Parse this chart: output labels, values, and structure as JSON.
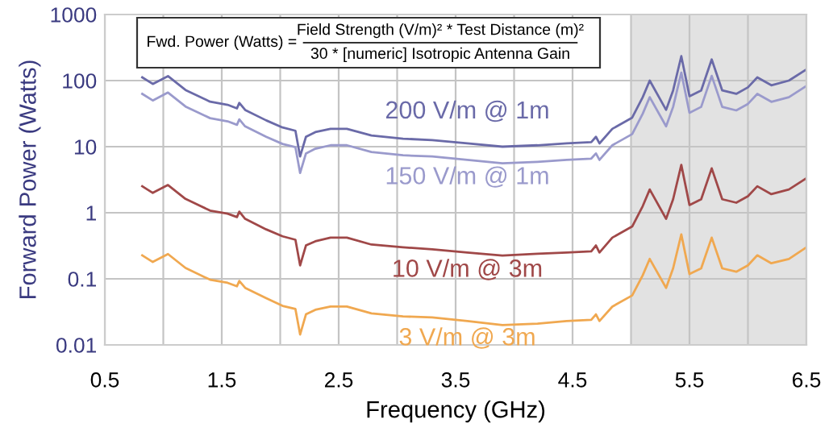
{
  "chart_data": {
    "type": "line",
    "xlabel": "Frequency (GHz)",
    "ylabel": "Forward Power (Watts)",
    "x": [
      0.82,
      0.91,
      1.04,
      1.19,
      1.4,
      1.55,
      1.63,
      1.65,
      1.7,
      1.88,
      2.02,
      2.13,
      2.17,
      2.22,
      2.3,
      2.43,
      2.57,
      2.78,
      3.05,
      3.3,
      3.6,
      3.9,
      4.2,
      4.45,
      4.66,
      4.7,
      4.73,
      4.84,
      5.01,
      5.1,
      5.16,
      5.3,
      5.36,
      5.43,
      5.5,
      5.6,
      5.69,
      5.78,
      5.9,
      6.0,
      6.08,
      6.2,
      6.35,
      6.5
    ],
    "series": [
      {
        "name": "200 V/m @ 1m",
        "color": "#6a6aa8",
        "values": [
          112,
          89,
          117,
          72,
          48,
          43,
          38,
          46,
          36,
          25,
          19.5,
          17.4,
          7.1,
          14.1,
          16.6,
          18.6,
          18.6,
          14.8,
          13.2,
          12.6,
          11.2,
          10,
          10.5,
          11.2,
          11.7,
          14.1,
          11.2,
          18.6,
          27.5,
          56,
          100,
          36,
          71,
          234,
          58,
          71,
          209,
          71,
          63,
          79,
          112,
          85,
          100,
          148
        ]
      },
      {
        "name": "150 V/m @ 1m",
        "color": "#9a9acc",
        "values": [
          63,
          50,
          66,
          40.5,
          27,
          24.2,
          21.4,
          25.9,
          20.3,
          14.1,
          11,
          9.8,
          4.0,
          7.9,
          9.3,
          10.5,
          10.5,
          8.3,
          7.4,
          7.1,
          6.3,
          5.6,
          5.9,
          6.3,
          6.6,
          7.9,
          6.3,
          10.5,
          15.5,
          31.5,
          56,
          20.3,
          40,
          132,
          32.6,
          40,
          118,
          40,
          35.4,
          44.4,
          63,
          47.8,
          56,
          83
        ]
      },
      {
        "name": "10 V/m @ 3m",
        "color": "#a04848",
        "values": [
          2.52,
          2.0,
          2.63,
          1.62,
          1.08,
          0.97,
          0.86,
          1.04,
          0.81,
          0.56,
          0.44,
          0.39,
          0.16,
          0.32,
          0.37,
          0.42,
          0.42,
          0.33,
          0.3,
          0.28,
          0.25,
          0.225,
          0.24,
          0.25,
          0.26,
          0.32,
          0.25,
          0.42,
          0.62,
          1.26,
          2.25,
          0.81,
          1.6,
          5.3,
          1.31,
          1.6,
          4.7,
          1.6,
          1.42,
          1.78,
          2.52,
          1.91,
          2.25,
          3.33
        ]
      },
      {
        "name": "3 V/m @ 3m",
        "color": "#f0a850",
        "values": [
          0.227,
          0.18,
          0.237,
          0.146,
          0.097,
          0.087,
          0.077,
          0.093,
          0.073,
          0.051,
          0.039,
          0.035,
          0.0144,
          0.029,
          0.034,
          0.038,
          0.038,
          0.03,
          0.027,
          0.026,
          0.023,
          0.02,
          0.021,
          0.023,
          0.024,
          0.029,
          0.023,
          0.038,
          0.056,
          0.113,
          0.2,
          0.073,
          0.144,
          0.47,
          0.118,
          0.144,
          0.42,
          0.144,
          0.128,
          0.16,
          0.227,
          0.172,
          0.2,
          0.3
        ]
      }
    ],
    "log": "y",
    "xlim": [
      0.5,
      6.5
    ],
    "ylim": [
      0.01,
      1000
    ],
    "xticks": [
      0.5,
      {
        "value": 1.0,
        "label": null
      },
      1.5,
      {
        "value": 2.0,
        "label": null
      },
      2.5,
      {
        "value": 3.0,
        "label": null
      },
      3.5,
      {
        "value": 4.0,
        "label": null
      },
      4.5,
      {
        "value": 5.0,
        "label": null
      },
      5.5,
      {
        "value": 6.0,
        "label": null
      },
      6.5
    ],
    "yticks": [
      0.01,
      0.1,
      1,
      10,
      100,
      1000
    ],
    "bands": [
      {
        "axis": "x",
        "from": 5.0,
        "to": 6.5,
        "color": "#e2e2e2"
      }
    ],
    "grid": true,
    "line_style": "solid",
    "marker": "none",
    "annotations": [
      "Fwd. Power (Watts) =",
      "Field Strength (V/m)² * Test Distance (m)²",
      "30 * [numeric] Isotropic Antenna Gain"
    ]
  }
}
